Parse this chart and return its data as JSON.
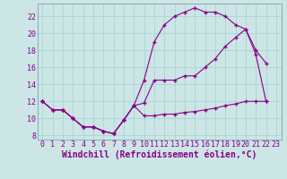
{
  "bg_color": "#cce5e5",
  "line_color": "#880088",
  "grid_color": "#aad4d4",
  "xlabel": "Windchill (Refroidissement éolien,°C)",
  "xlabel_fontsize": 7,
  "tick_fontsize": 6,
  "ylim": [
    7.5,
    23.5
  ],
  "xlim": [
    -0.5,
    23.5
  ],
  "yticks": [
    8,
    10,
    12,
    14,
    16,
    18,
    20,
    22
  ],
  "xticks": [
    0,
    1,
    2,
    3,
    4,
    5,
    6,
    7,
    8,
    9,
    10,
    11,
    12,
    13,
    14,
    15,
    16,
    17,
    18,
    19,
    20,
    21,
    22,
    23
  ],
  "line1_x": [
    0,
    1,
    2,
    3,
    4,
    5,
    6,
    7,
    8,
    9,
    10,
    11,
    12,
    13,
    14,
    15,
    16,
    17,
    18,
    19,
    20,
    21,
    22
  ],
  "line1_y": [
    12,
    11,
    11,
    10,
    9,
    9,
    8.5,
    8.2,
    9.8,
    11.5,
    14.5,
    19,
    21,
    22,
    22.5,
    23,
    22.5,
    22.5,
    22,
    21,
    20.5,
    18,
    16.5
  ],
  "line2_x": [
    0,
    1,
    2,
    3,
    4,
    5,
    6,
    7,
    8,
    9,
    10,
    11,
    12,
    13,
    14,
    15,
    16,
    17,
    18,
    19,
    20,
    21,
    22
  ],
  "line2_y": [
    12,
    11,
    11,
    10,
    9,
    9,
    8.5,
    8.2,
    9.8,
    11.5,
    10.3,
    10.3,
    10.5,
    10.5,
    10.7,
    10.8,
    11,
    11.2,
    11.5,
    11.7,
    12,
    12,
    12
  ],
  "line3_x": [
    0,
    1,
    2,
    3,
    4,
    5,
    6,
    7,
    8,
    9,
    10,
    11,
    12,
    13,
    14,
    15,
    16,
    17,
    18,
    19,
    20,
    21,
    22
  ],
  "line3_y": [
    12,
    11,
    11,
    10,
    9,
    9,
    8.5,
    8.2,
    9.8,
    11.5,
    11.8,
    14.5,
    14.5,
    14.5,
    15,
    15,
    16,
    17,
    18.5,
    19.5,
    20.5,
    17.5,
    12
  ]
}
